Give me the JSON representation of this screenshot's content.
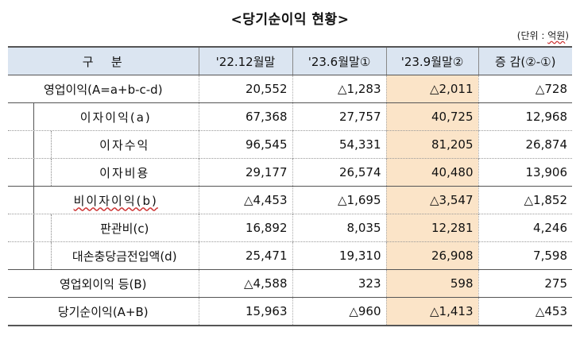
{
  "title": "<당기순이익 현황>",
  "unit": {
    "prefix": "(단위 : ",
    "value": "억원",
    "suffix": ")"
  },
  "headers": [
    "구   분",
    "'22.12월말",
    "'23.6월말①",
    "'23.9월말②",
    "증 감(②-①)"
  ],
  "rows": [
    {
      "label": "영업이익(A=a+b-c-d)",
      "values": [
        "20,552",
        "△1,283",
        "△2,011",
        "△728"
      ]
    },
    {
      "label": "이자이익(a)",
      "values": [
        "67,368",
        "27,757",
        "40,725",
        "12,968"
      ]
    },
    {
      "label": "이자수익",
      "values": [
        "96,545",
        "54,331",
        "81,205",
        "26,874"
      ]
    },
    {
      "label": "이자비용",
      "values": [
        "29,177",
        "26,574",
        "40,480",
        "13,906"
      ]
    },
    {
      "label": "비이자이익(b)",
      "values": [
        "△4,453",
        "△1,695",
        "△3,547",
        "△1,852"
      ]
    },
    {
      "label": "판관비(c)",
      "values": [
        "16,892",
        "8,035",
        "12,281",
        "4,246"
      ]
    },
    {
      "label": "대손충당금전입액(d)",
      "values": [
        "25,471",
        "19,310",
        "26,908",
        "7,598"
      ]
    },
    {
      "label": "영업외이익 등(B)",
      "values": [
        "△4,588",
        "323",
        "598",
        "275"
      ]
    },
    {
      "label": "당기순이익(A+B)",
      "values": [
        "15,963",
        "△960",
        "△1,413",
        "△453"
      ]
    }
  ]
}
